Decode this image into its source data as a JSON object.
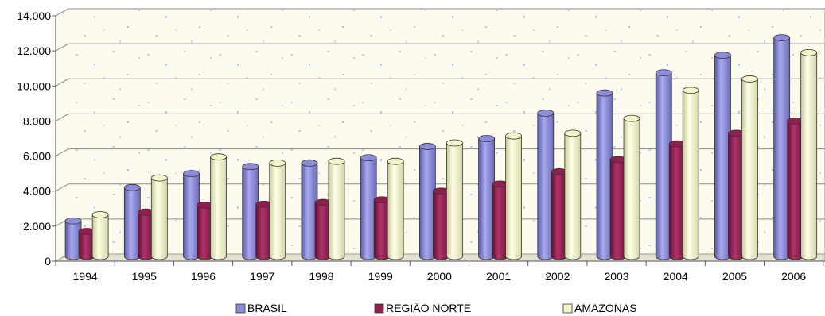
{
  "chart_data": {
    "type": "bar",
    "title": "",
    "xlabel": "",
    "ylabel": "",
    "ylim": [
      0,
      14000
    ],
    "yticks": [
      "0",
      "2.000",
      "4.000",
      "6.000",
      "8.000",
      "10.000",
      "12.000",
      "14.000"
    ],
    "ytick_values": [
      0,
      2000,
      4000,
      6000,
      8000,
      10000,
      12000,
      14000
    ],
    "categories": [
      "1994",
      "1995",
      "1996",
      "1997",
      "1998",
      "1999",
      "2000",
      "2001",
      "2002",
      "2003",
      "2004",
      "2005",
      "2006"
    ],
    "series": [
      {
        "name": "BRASIL",
        "color": "#8c8cd9",
        "values": [
          2300,
          4200,
          5000,
          5400,
          5600,
          5900,
          6550,
          7000,
          8450,
          9600,
          10750,
          11750,
          12750
        ]
      },
      {
        "name": "REGIÃO NORTE",
        "color": "#8e1f4e",
        "values": [
          1700,
          2800,
          3200,
          3250,
          3350,
          3500,
          4000,
          4400,
          5100,
          5800,
          6700,
          7300,
          8000
        ]
      },
      {
        "name": "AMAZONAS",
        "color": "#f4f4c8",
        "values": [
          2650,
          4750,
          5950,
          5600,
          5700,
          5700,
          6750,
          7150,
          7300,
          8150,
          9750,
          10400,
          11900
        ]
      }
    ],
    "grid": true,
    "legend_position": "bottom",
    "plot_background": "#fdfbee"
  }
}
